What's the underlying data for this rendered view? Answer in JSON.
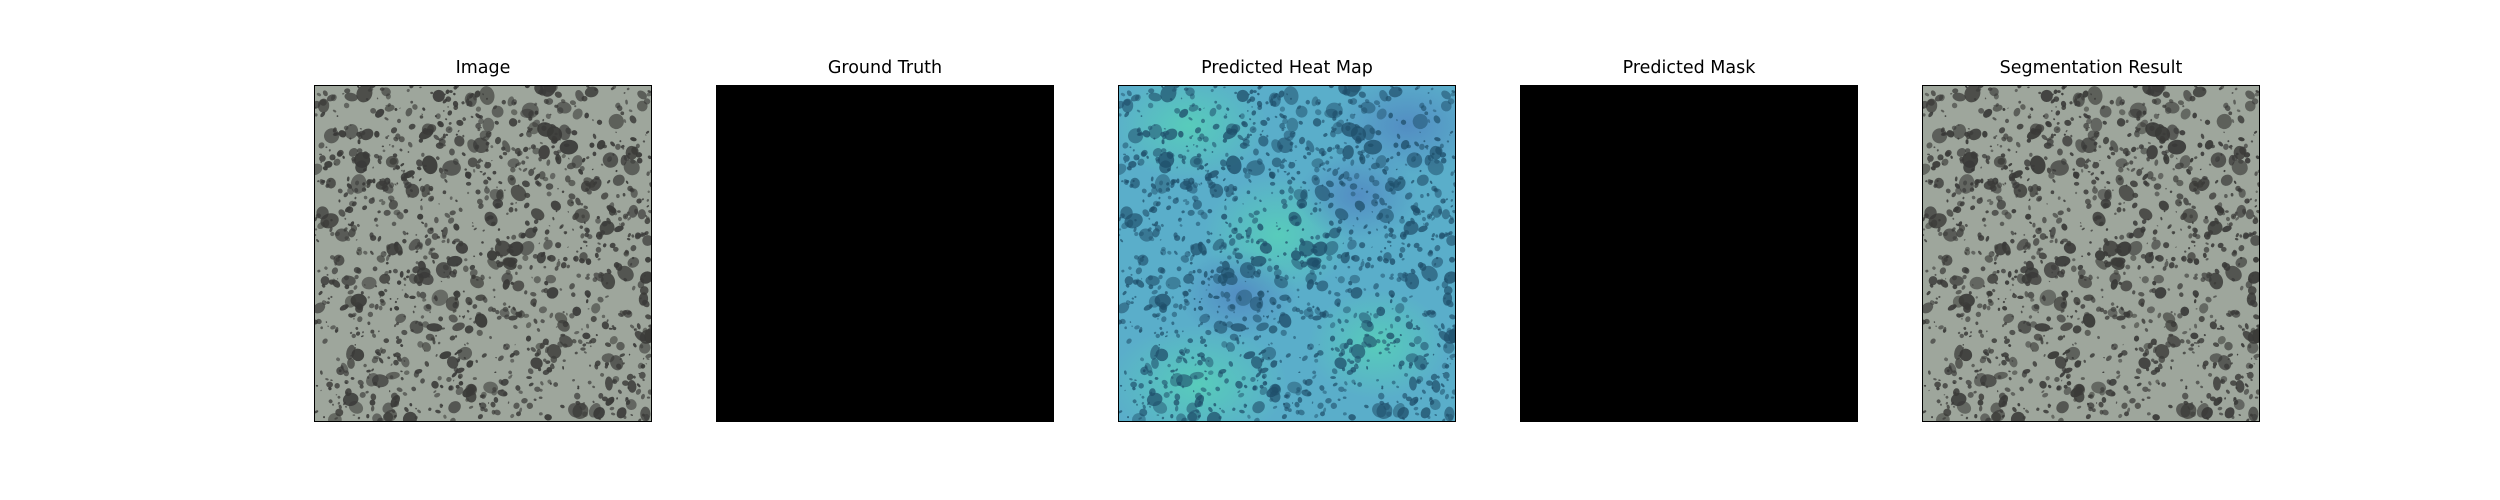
{
  "figure": {
    "panels": [
      {
        "title": "Image",
        "kind": "texture-image",
        "background": "#9ea69c",
        "blob_color": "#3a3a38"
      },
      {
        "title": "Ground Truth",
        "kind": "solid-mask",
        "background": "#000000"
      },
      {
        "title": "Predicted Heat Map",
        "kind": "heatmap-overlay",
        "background": "#5aaeca",
        "blob_color": "#1f4f6b"
      },
      {
        "title": "Predicted Mask",
        "kind": "solid-mask",
        "background": "#000000"
      },
      {
        "title": "Segmentation Result",
        "kind": "texture-image",
        "background": "#9ea69c",
        "blob_color": "#3a3a38"
      }
    ]
  }
}
